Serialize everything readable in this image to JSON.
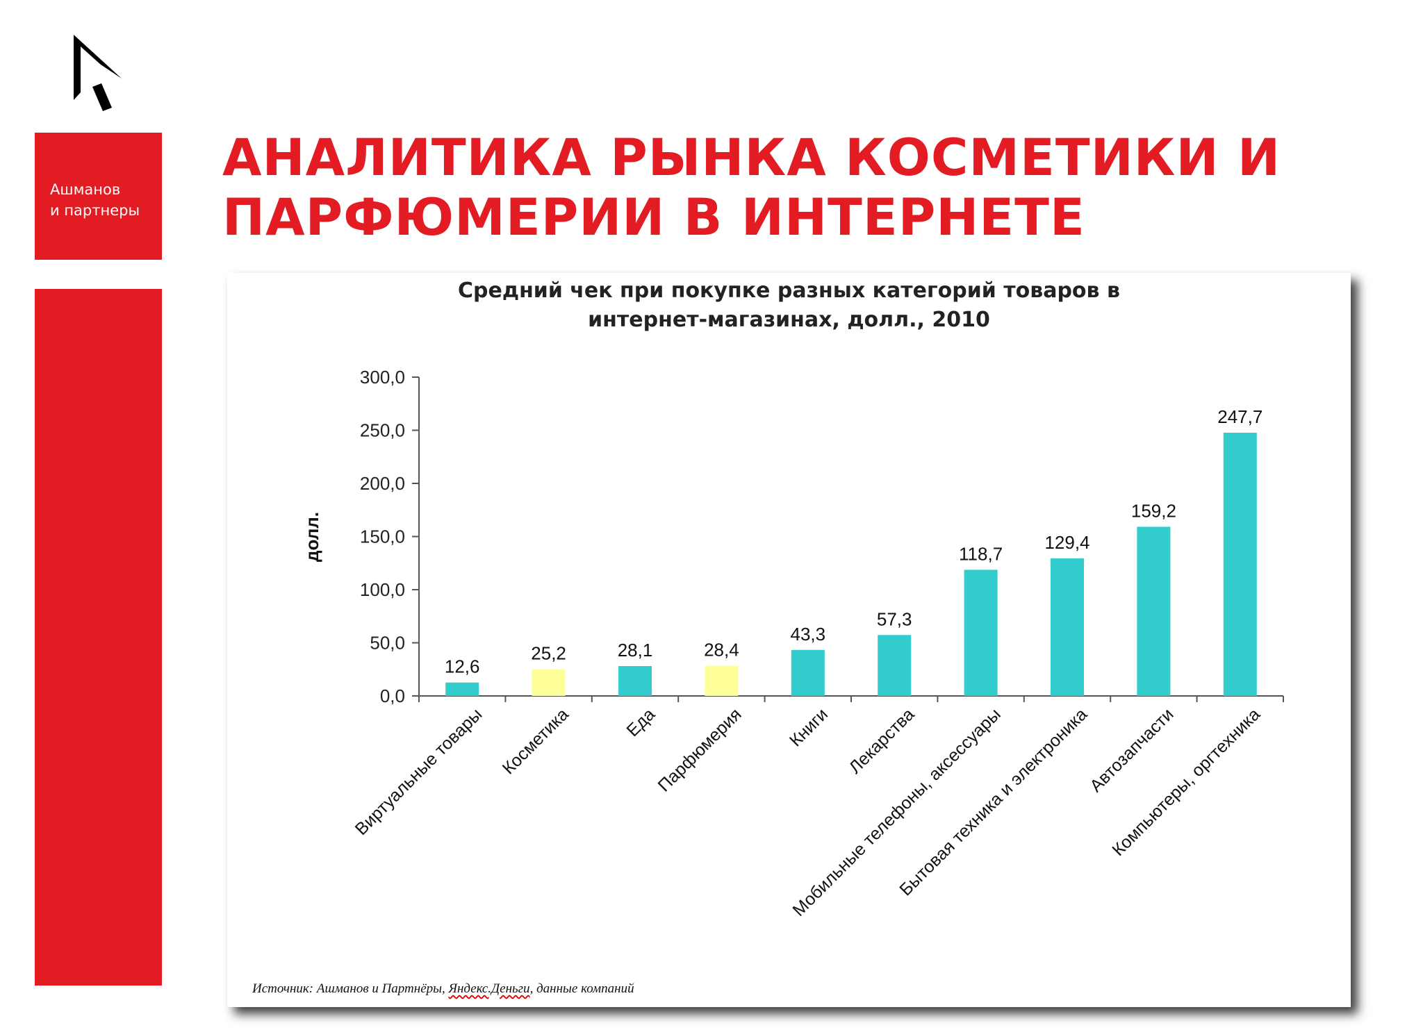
{
  "brand": {
    "logo_icon": "ashmanov-arrow-logo",
    "line1": "Ашманов",
    "line2": "и партнеры",
    "color": "#e31b23"
  },
  "page": {
    "title_line1": "АНАЛИТИКА РЫНКА КОСМЕТИКИ И",
    "title_line2": "ПАРФЮМЕРИИ В ИНТЕРНЕТЕ"
  },
  "chart": {
    "title_line1": "Средний чек при покупке разных категорий товаров в",
    "title_line2": "интернет-магазинах, долл., 2010",
    "source_prefix": "Источник: Ашманов и Партнёры, ",
    "source_underlined": "Яндекс.Деньги",
    "source_suffix": ", данные компаний"
  },
  "chart_data": {
    "type": "bar",
    "title": "Средний чек при покупке разных категорий товаров в интернет-магазинах, долл., 2010",
    "xlabel": "",
    "ylabel": "долл.",
    "ylim": [
      0,
      300
    ],
    "yticks": [
      "0,0",
      "50,0",
      "100,0",
      "150,0",
      "200,0",
      "250,0",
      "300,0"
    ],
    "grid": false,
    "legend": null,
    "categories": [
      "Виртуальные товары",
      "Косметика",
      "Еда",
      "Парфюмерия",
      "Книги",
      "Лекарства",
      "Мобильные телефоны, аксессуары",
      "Бытовая техника и электроника",
      "Автозапчасти",
      "Компьютеры, оргтехника"
    ],
    "values": [
      12.6,
      25.2,
      28.1,
      28.4,
      43.3,
      57.3,
      118.7,
      129.4,
      159.2,
      247.7
    ],
    "value_labels": [
      "12,6",
      "25,2",
      "28,1",
      "28,4",
      "43,3",
      "57,3",
      "118,7",
      "129,4",
      "159,2",
      "247,7"
    ],
    "bar_colors": [
      "#33cccc",
      "#ffff99",
      "#33cccc",
      "#ffff99",
      "#33cccc",
      "#33cccc",
      "#33cccc",
      "#33cccc",
      "#33cccc",
      "#33cccc"
    ],
    "highlight_color": "#ffff99",
    "default_color": "#33cccc"
  }
}
